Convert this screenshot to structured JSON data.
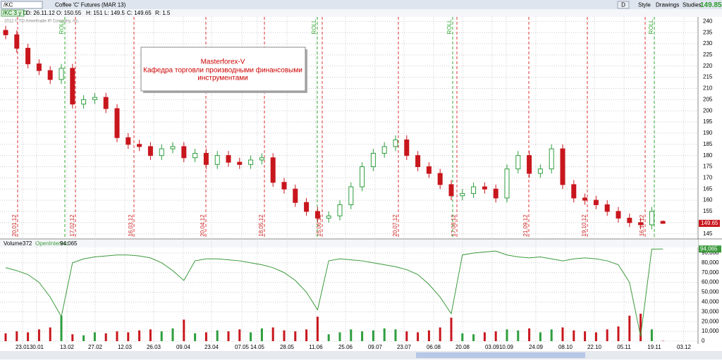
{
  "header": {
    "symbol": "/KC",
    "description": "Coffee 'C' Futures (MAR 13)",
    "last": "149.85",
    "buttons": [
      "D",
      "Style",
      "Drawings",
      "Studies"
    ]
  },
  "info": {
    "chart": "/KC 3 y D",
    "date": "D: 26.11.12",
    "open": "O: 150.55",
    "high": "H: 151",
    "low": "L: 149.5",
    "close": "C: 149.65",
    "range": "R: 1.5"
  },
  "copyright": "2012 © TD Ameritrade IP Company, Inc.",
  "annotation": {
    "title": "Masterforex-V",
    "lines": [
      "Кафедра торговли производными финансовыми",
      "инструментами"
    ]
  },
  "markers": {
    "red": [
      "20.01.12",
      "17.02.12",
      "16.03.12",
      "20.04.12",
      "18.05.12",
      "15.06.12",
      "20.07.12",
      "17.08.12",
      "21.09.12",
      "19.10.12",
      "16.11.12"
    ],
    "green": [
      "ROLL",
      "ROLL",
      "ROLL",
      "ROLL"
    ]
  },
  "dates": [
    "23.01",
    "30.01",
    "13.02",
    "27.02",
    "12.03",
    "26.03",
    "09.04",
    "23.04",
    "07.05",
    "14.05",
    "28.05",
    "11.06",
    "25.06",
    "09.07",
    "23.07",
    "06.08",
    "20.08",
    "03.09",
    "10.09",
    "24.09",
    "08.10",
    "22.10",
    "05.11",
    "19.11",
    "03.12"
  ],
  "chart_data": [
    {
      "type": "candlestick",
      "ylim": [
        143,
        242
      ],
      "yticks": [
        145,
        150,
        155,
        160,
        165,
        170,
        175,
        180,
        185,
        190,
        195,
        200,
        205,
        210,
        215,
        220,
        225,
        230,
        235,
        240
      ],
      "grid": true,
      "up_color": "#2e9e3e",
      "down_color": "#c8161d",
      "last_label": "149.65",
      "last_value": 149.65,
      "open": [
        236,
        234,
        228,
        221,
        218,
        214,
        219,
        203,
        205,
        206,
        201,
        188,
        185,
        184,
        180,
        183,
        184,
        179,
        181,
        176,
        180,
        177,
        176,
        178,
        179,
        168,
        165,
        159,
        155,
        152,
        153,
        158,
        166,
        175,
        181,
        184,
        187,
        180,
        175,
        172,
        167,
        162,
        163,
        166,
        165,
        161,
        174,
        180,
        172,
        174,
        183,
        167,
        161,
        160,
        158,
        155,
        152,
        150,
        149,
        150.55
      ],
      "high": [
        238,
        236,
        230,
        223,
        220,
        221,
        221,
        207,
        208,
        208,
        203,
        190,
        187,
        186,
        185,
        186,
        186,
        183,
        183,
        182,
        182,
        179,
        180,
        181,
        181,
        170,
        167,
        161,
        157,
        155,
        160,
        168,
        177,
        183,
        186,
        189,
        189,
        182,
        177,
        174,
        169,
        165,
        168,
        168,
        167,
        176,
        182,
        182,
        176,
        185,
        185,
        169,
        163,
        162,
        160,
        157,
        154,
        152,
        157,
        151
      ],
      "low": [
        232,
        226,
        219,
        216,
        212,
        212,
        201,
        201,
        203,
        199,
        186,
        183,
        182,
        178,
        178,
        181,
        177,
        177,
        174,
        174,
        175,
        174,
        174,
        176,
        166,
        163,
        157,
        153,
        150,
        150,
        151,
        156,
        164,
        173,
        179,
        182,
        178,
        173,
        170,
        165,
        160,
        160,
        161,
        163,
        159,
        159,
        172,
        170,
        170,
        172,
        165,
        159,
        158,
        156,
        153,
        150,
        148,
        147,
        147,
        149.5
      ],
      "close": [
        234,
        228,
        221,
        218,
        214,
        219,
        203,
        205,
        206,
        201,
        188,
        185,
        184,
        180,
        183,
        184,
        179,
        181,
        176,
        180,
        177,
        176,
        178,
        179,
        168,
        165,
        159,
        155,
        152,
        153,
        158,
        166,
        175,
        181,
        184,
        187,
        180,
        175,
        172,
        167,
        162,
        163,
        166,
        165,
        161,
        174,
        180,
        172,
        174,
        183,
        167,
        161,
        160,
        158,
        155,
        152,
        150,
        149,
        155,
        149.65
      ]
    },
    {
      "type": "volume",
      "title": "Volume",
      "readout": "372",
      "ylim": [
        0,
        95000
      ],
      "yticks": [
        0,
        {
          "value": 10000,
          "label": "10,000"
        },
        {
          "value": 20000,
          "label": "20,000"
        },
        {
          "value": 30000,
          "label": "30,000"
        },
        {
          "value": 40000,
          "label": "40,000"
        },
        {
          "value": 50000,
          "label": "50,000"
        },
        {
          "value": 60000,
          "label": "60,000"
        },
        {
          "value": 70000,
          "label": "70,000"
        },
        {
          "value": 80000,
          "label": "80,000"
        },
        {
          "value": 90000,
          "label": "90,000"
        }
      ],
      "grid": true,
      "values": [
        8000,
        10000,
        9000,
        12000,
        14000,
        26000,
        7000,
        6000,
        9000,
        8000,
        10000,
        9000,
        11000,
        12000,
        10000,
        13000,
        22000,
        8000,
        9000,
        11000,
        10000,
        12000,
        9000,
        13000,
        14000,
        11000,
        10000,
        12000,
        25000,
        7000,
        9000,
        12000,
        10000,
        11000,
        13000,
        12000,
        10000,
        9000,
        11000,
        14000,
        24000,
        8000,
        7000,
        9000,
        10000,
        12000,
        11000,
        13000,
        9000,
        12000,
        14000,
        11000,
        10000,
        9000,
        12000,
        15000,
        26000,
        28000,
        12000,
        372
      ],
      "series": [
        {
          "name": "OpenInterest",
          "color": "#3c9a3c",
          "last_label": "94,065",
          "values": [
            75000,
            72000,
            68000,
            60000,
            45000,
            25000,
            80000,
            84000,
            86000,
            87000,
            88000,
            88000,
            87000,
            85000,
            80000,
            72000,
            62000,
            82000,
            84000,
            84000,
            83000,
            82000,
            80000,
            78000,
            75000,
            70000,
            62000,
            50000,
            32000,
            82000,
            84000,
            83000,
            82000,
            80000,
            78000,
            76000,
            73000,
            68000,
            58000,
            45000,
            28000,
            88000,
            90000,
            91000,
            92000,
            88000,
            86000,
            85000,
            86000,
            84000,
            82000,
            84000,
            85000,
            84000,
            82000,
            78000,
            60000,
            5000,
            94000,
            94065
          ]
        }
      ]
    }
  ]
}
